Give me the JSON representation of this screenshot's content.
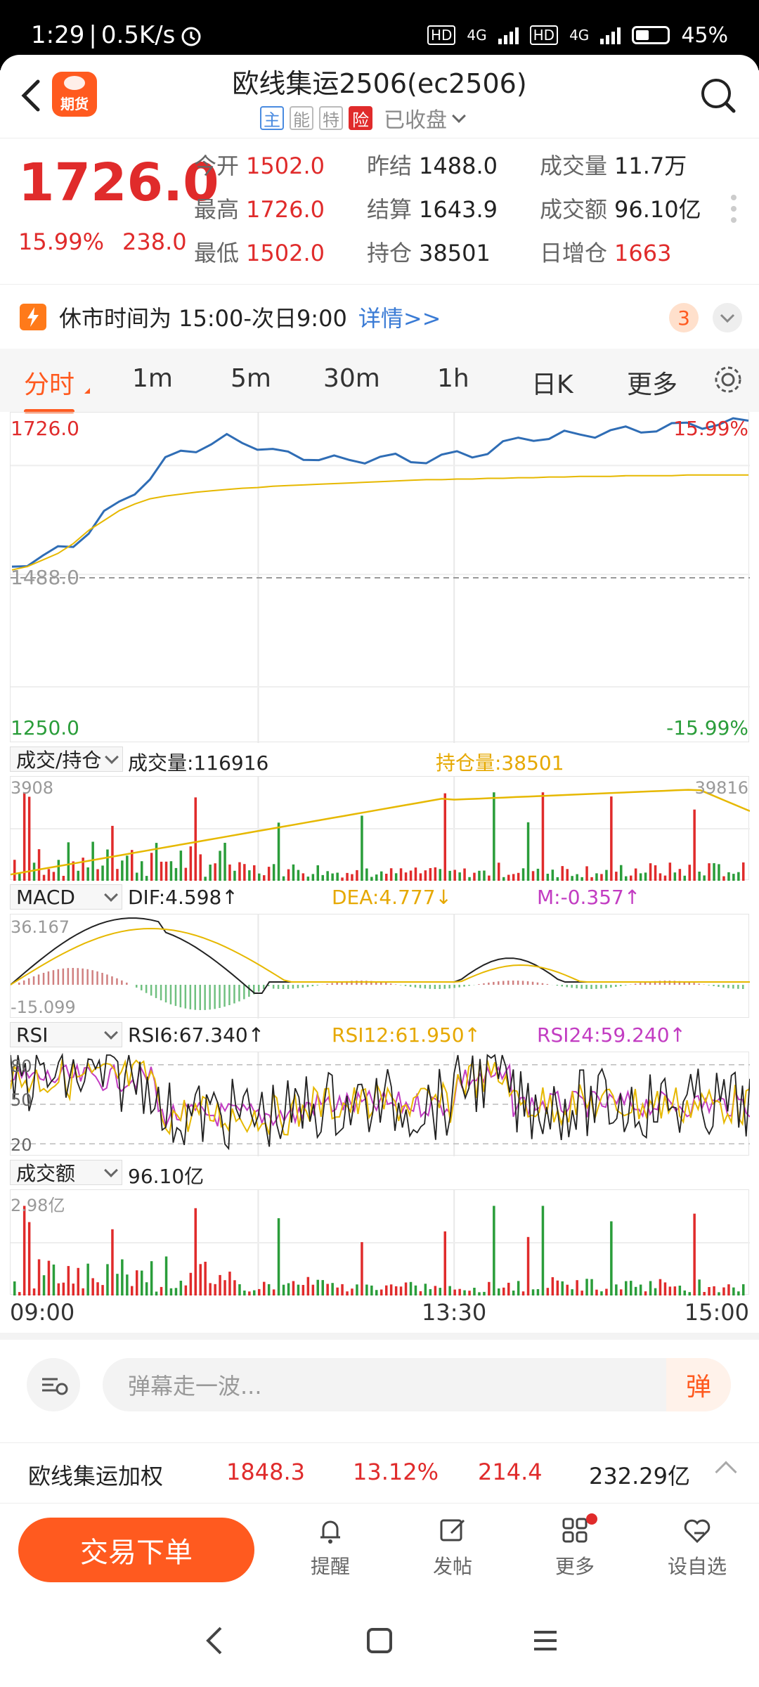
{
  "status_bar": {
    "time": "1:29",
    "net_speed": "0.5K/s",
    "net_hd": "HD",
    "net_4g": "4G",
    "battery": "45%"
  },
  "header": {
    "logo_text": "期货",
    "title": "欧线集运2506(ec2506)",
    "tags": [
      "主",
      "能",
      "特",
      "险"
    ],
    "market_status": "已收盘"
  },
  "quote": {
    "price": "1726.0",
    "change_pct": "15.99%",
    "change": "238.0",
    "fields": [
      {
        "label": "今开",
        "value": "1502.0",
        "color": "red"
      },
      {
        "label": "昨结",
        "value": "1488.0",
        "color": "black"
      },
      {
        "label": "成交量",
        "value": "11.7万",
        "color": "black"
      },
      {
        "label": "最高",
        "value": "1726.0",
        "color": "red"
      },
      {
        "label": "结算",
        "value": "1643.9",
        "color": "black"
      },
      {
        "label": "成交额",
        "value": "96.10亿",
        "color": "black"
      },
      {
        "label": "最低",
        "value": "1502.0",
        "color": "red"
      },
      {
        "label": "持仓",
        "value": "38501",
        "color": "black"
      },
      {
        "label": "日增仓",
        "value": "1663",
        "color": "red"
      }
    ]
  },
  "notice": {
    "text": "休市时间为 15:00-次日9:00",
    "link": "详情>>",
    "badge": "3"
  },
  "tabs": [
    "分时",
    "1m",
    "5m",
    "30m",
    "1h",
    "日K",
    "更多"
  ],
  "price_chart": {
    "top_label": "1726.0",
    "top_pct": "15.99%",
    "mid_label": "1488.0",
    "bottom_label": "1250.0",
    "bottom_pct": "-15.99%"
  },
  "volume_panel": {
    "selector": "成交/持仓",
    "volume": "成交量:116916",
    "oi": "持仓量:38501",
    "max_left": "3908",
    "max_right": "39816"
  },
  "macd_panel": {
    "selector": "MACD",
    "dif": "DIF:4.598↑",
    "dea": "DEA:4.777↓",
    "m": "M:-0.357↑",
    "max": "36.167",
    "min": "-15.099"
  },
  "rsi_panel": {
    "selector": "RSI",
    "rsi6": "RSI6:67.340↑",
    "rsi12": "RSI12:61.950↑",
    "rsi24": "RSI24:59.240↑",
    "l80": "80",
    "l50": "50",
    "l20": "20"
  },
  "amount_panel": {
    "selector": "成交额",
    "value": "96.10亿",
    "max": "2.98亿"
  },
  "time_axis": {
    "start": "09:00",
    "mid": "13:30",
    "end": "15:00"
  },
  "comment": {
    "placeholder": "弹幕走一波...",
    "danmu": "弹"
  },
  "weighted": {
    "name": "欧线集运加权",
    "price": "1848.3",
    "pct": "13.12%",
    "change": "214.4",
    "amount": "232.29亿"
  },
  "bottom_nav": {
    "trade": "交易下单",
    "items": [
      "提醒",
      "发帖",
      "更多",
      "设自选"
    ]
  },
  "colors": {
    "red": "#e02b2b",
    "green": "#2a9d3a",
    "orange": "#ff5a1f",
    "blue": "#2f6db5",
    "yellow": "#e6b800",
    "purple": "#c23cc2"
  },
  "chart_data": [
    {
      "type": "line",
      "title": "",
      "x_range": [
        "09:00",
        "15:00"
      ],
      "ylim": [
        1250.0,
        1726.0
      ],
      "series": [
        {
          "values": [
            1505,
            1512,
            1520,
            1530,
            1538,
            1560,
            1585,
            1600,
            1620,
            1640,
            1665,
            1680,
            1685,
            1690,
            1700,
            1695,
            1688,
            1680,
            1675,
            1672,
            1670,
            1668,
            1665,
            1668,
            1672,
            1670,
            1665,
            1668,
            1672,
            1675,
            1675,
            1680,
            1690,
            1698,
            1702,
            1700,
            1705,
            1706,
            1707,
            1710,
            1712,
            1712,
            1715,
            1718,
            1720,
            1720,
            1722,
            1724,
            1726
          ]
        },
        {
          "values": [
            1500,
            1505,
            1515,
            1525,
            1540,
            1560,
            1575,
            1590,
            1600,
            1608,
            1612,
            1615,
            1618,
            1620,
            1622,
            1624,
            1625,
            1627,
            1628,
            1629,
            1630,
            1631,
            1632,
            1633,
            1634,
            1635,
            1636,
            1637,
            1637,
            1638,
            1638,
            1639,
            1639,
            1640,
            1640,
            1641,
            1641,
            1642,
            1642,
            1642,
            1643,
            1643,
            1643,
            1643,
            1644,
            1644,
            1644,
            1644,
            1644
          ]
        }
      ]
    },
    {
      "type": "bar",
      "title": "",
      "ylim": [
        0,
        3908
      ]
    }
  ]
}
